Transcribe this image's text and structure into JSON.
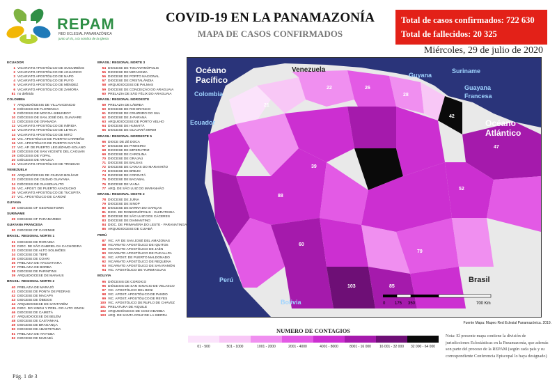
{
  "brand": {
    "name": "REPAM",
    "sub": "RED ECLESIAL PANAMAZÓNICA",
    "tagline": "junto al río, a la sombra de la iglesia",
    "logo_icon": "cross-in-green-leaves-logo"
  },
  "header": {
    "title": "COVID-19 EN LA PANAMAZONÍA",
    "subtitle": "MAPA DE CASOS CONFIRMADOS",
    "date": "Miércoles, 29 de julio de 2020"
  },
  "totals": {
    "confirmed_label": "Total de casos confirmados:",
    "confirmed_value": "722 630",
    "deaths_label": "Total de fallecidos:",
    "deaths_value": "20 325",
    "bg": "#e32118"
  },
  "map_labels": {
    "oceano_pacifico": "Océano\nPacífico",
    "colombia": "Colombia",
    "ecuador": "Ecuador",
    "venezuela": "Venezuela",
    "guyana": "Guyana",
    "suriname": "Suriname",
    "guayana_francesa": "Guayana\nFrancesa",
    "oceano_atlantico": "Océano\nAtlántico",
    "peru": "Perú",
    "bolivia": "Bolivia",
    "brasil": "Brasil"
  },
  "scale": {
    "ticks": [
      "0",
      "175",
      "350",
      "700 Km"
    ]
  },
  "source": "Fuente Mapa: Mapeo Red Eclesial Panamazónica. 2019.",
  "contagios": {
    "title": "NUMERO DE CONTAGIOS",
    "bins": [
      {
        "label": "01 - 500",
        "color": "#fbe3fb"
      },
      {
        "label": "501 - 1000",
        "color": "#f8c7f6"
      },
      {
        "label": "1001 - 2000",
        "color": "#f08ff0"
      },
      {
        "label": "2001 - 4000",
        "color": "#e35ae5"
      },
      {
        "label": "4001 - 8000",
        "color": "#cc2fd1"
      },
      {
        "label": "8001 - 16 000",
        "color": "#a51aac"
      },
      {
        "label": "16 001 - 32 000",
        "color": "#6e0f76"
      },
      {
        "label": "32 000 - 64 000",
        "color": "#0a0a0a"
      }
    ]
  },
  "note": "Nota: El presente mapa contiene la división de jurisdicciones Eclesiásticas en la Panamazonía, que además son parte del proceso de la REPAM (según cada país y su correspondiente Conferencia Episcopal lo haya designado)",
  "page": "Pág. 1 de 3",
  "legend_col1": [
    {
      "h": "ECUADOR"
    },
    {
      "n": "1",
      "t": "VICARIATO APOSTÓLICO DE SUCUMBÍOS"
    },
    {
      "n": "2",
      "t": "VICARIATO APOSTÓLICO DE AGUARICO"
    },
    {
      "n": "3",
      "t": "VICARIATO APOSTÓLICO DE NAPO"
    },
    {
      "n": "4",
      "t": "VICARIATO APOSTÓLICO DE PUYO"
    },
    {
      "n": "5",
      "t": "VICARIATO APOSTÓLICO DE MÉNDEZ"
    },
    {
      "n": "6",
      "t": "VICARIATO APOSTÓLICO DE ZAMORA"
    },
    {
      "n": "81",
      "t": "no definido"
    },
    {
      "h": "COLOMBIA"
    },
    {
      "n": "7",
      "t": "ARQUIDIÓCESIS DE VILLAVICENCIO"
    },
    {
      "n": "8",
      "t": "DIÓCESIS DE FLORENCIA"
    },
    {
      "n": "9",
      "t": "DIÓCESIS DE MOCOA-SIBUNDOY"
    },
    {
      "n": "10",
      "t": "DIÓCESIS DE SAN JOSÉ DEL GUAVIARE"
    },
    {
      "n": "11",
      "t": "DIÓCESIS DE GRANADA"
    },
    {
      "n": "12",
      "t": "VICARIATO APOSTÓLICO DE INÍRIDA"
    },
    {
      "n": "13",
      "t": "VICARIATO APOSTÓLICO DE LETICIA"
    },
    {
      "n": "14",
      "t": "VICARIATO APOSTÓLICO DE MITÚ"
    },
    {
      "n": "15",
      "t": "VIC. APOSTÓLICO DE PUERTO CARREÑO"
    },
    {
      "n": "16",
      "t": "VIC. APOSTÓLICO DE PUERTO GAITÁN"
    },
    {
      "n": "17",
      "t": "VIC. AP. DE PUERTO LEGUÍZAMO-SOLANO"
    },
    {
      "n": "18",
      "t": "DIÓCESIS DE SAN VICENTE DEL CAGUÁN"
    },
    {
      "n": "19",
      "t": "DIÓCESIS DE YOPAL"
    },
    {
      "n": "20",
      "t": "DIÓCESIS DE ARAUCA"
    },
    {
      "n": "21",
      "t": "VICARIATO APOSTÓLICO DE TRINIDAD"
    },
    {
      "h": "VENEZUELA"
    },
    {
      "n": "22",
      "t": "ARQUIDIÓCESIS DE CIUDAD BOLÍVAR"
    },
    {
      "n": "23",
      "t": "DIÓCESIS DE CIUDAD GUAYANA"
    },
    {
      "n": "24",
      "t": "DIÓCESIS DE GUASDUALITO"
    },
    {
      "n": "25",
      "t": "VIC. APOST. DE PUERTO AYACUCHO"
    },
    {
      "n": "26",
      "t": "VICARIATO APOSTÓLICO DE TUCUPITA"
    },
    {
      "n": "27",
      "t": "VIC. APOSTÓLICO DE CARONÍ"
    },
    {
      "h": "GUYANA"
    },
    {
      "n": "28",
      "t": "DIOCESE OF GEORGETOWN"
    },
    {
      "h": "SURINAME"
    },
    {
      "n": "29",
      "t": "DIOCESE OF PARAMARIBO"
    },
    {
      "h": "GUAYANA FRANCESA"
    },
    {
      "n": "30",
      "t": "DIOCESE OF CAYENNE"
    },
    {
      "h": "BRASIL: REGIONAL NORTE 1"
    },
    {
      "n": "31",
      "t": "DIOCESE DE RORAIMA"
    },
    {
      "n": "32",
      "t": "DIOC. DE SÃO GABRIEL DA CACHOEIRA"
    },
    {
      "n": "33",
      "t": "DIOCESE DE ALTO SOLIMÕES"
    },
    {
      "n": "34",
      "t": "DIOCESE DE TEFÉ"
    },
    {
      "n": "35",
      "t": "DIOCESE DE COARI"
    },
    {
      "n": "36",
      "t": "PRELAZIA DE ITACOATIARA"
    },
    {
      "n": "37",
      "t": "PRELAZIA DE BORBA"
    },
    {
      "n": "38",
      "t": "DIOCESE DE PARINTINS"
    },
    {
      "n": "39",
      "t": "ARQUIDIOCESE DE MANAUS"
    },
    {
      "h": "BRASIL: REGIONAL NORTE 2"
    },
    {
      "n": "40",
      "t": "PRELAZIA DE MARAJÓ"
    },
    {
      "n": "41",
      "t": "DIOCESE DE PONTA DE PEDRAS"
    },
    {
      "n": "42",
      "t": "DIOCESE DE MACAPÁ"
    },
    {
      "n": "43",
      "t": "DIOCESE DE ÓBIDOS"
    },
    {
      "n": "44",
      "t": "ARQUIDIOCESE DE SANTARÉM"
    },
    {
      "n": "45",
      "t": "DIOC. DO XINGU Y PREL. DO ALTO XINGU"
    },
    {
      "n": "46",
      "t": "DIOCESE DE CAMETÁ"
    },
    {
      "n": "47",
      "t": "ARQUIDIOCESE DE BELÉM"
    },
    {
      "n": "48",
      "t": "DIOCESE DE CASTANHAL"
    },
    {
      "n": "49",
      "t": "DIOCESE DE BRAGANÇA"
    },
    {
      "n": "50",
      "t": "DIOCESE DE ABAETETUBA"
    },
    {
      "n": "51",
      "t": "PRELAZIA DE ITAITUBA"
    },
    {
      "n": "52",
      "t": "DIOCESE DE MARABÁ"
    }
  ],
  "legend_col2": [
    {
      "h": "BRASIL: REGIONAL NORTE 3"
    },
    {
      "n": "54",
      "t": "DIOCESE DE TOCANTINÓPOLIS"
    },
    {
      "n": "55",
      "t": "DIOCESE DE MIRACEMA"
    },
    {
      "n": "56",
      "t": "DIOCESE DE PORTO NACIONAL"
    },
    {
      "n": "57",
      "t": "DIOCESE DE CRISTALÂNDIA"
    },
    {
      "n": "58",
      "t": "ARQUIDIOCESE DE PALMAS"
    },
    {
      "n": "59",
      "t": "DIOCESE DE CONCEIÇÃO DO ARAGUAIA"
    },
    {
      "n": "60",
      "t": "PRELAZIA DE SÃO FÉLIX DO ARAGUAIA"
    },
    {
      "h": "BRASIL: REGIONAL NOROESTE"
    },
    {
      "n": "59",
      "t": "PRELAZIA DE LÁBREA"
    },
    {
      "n": "60",
      "t": "DIOCESE DE RIO BRANCO"
    },
    {
      "n": "61",
      "t": "DIOCESE DE CRUZEIRO DO SUL"
    },
    {
      "n": "62",
      "t": "DIOCESE DE JI-PARANÁ"
    },
    {
      "n": "63",
      "t": "ARQUIDIOCESE DE PORTO VELHO"
    },
    {
      "n": "64",
      "t": "DIOCESE DE HUMAITÁ"
    },
    {
      "n": "65",
      "t": "DIOCESE DE GUAJARÁ-MIRIM"
    },
    {
      "h": "BRASIL: REGIONAL NORDESTE 5"
    },
    {
      "n": "66",
      "t": "DIOCE DE ZÉ DOCA"
    },
    {
      "n": "67",
      "t": "DIOCESE DE PINHEIRO"
    },
    {
      "n": "68",
      "t": "DIOCESE DE IMPERATRIZ"
    },
    {
      "n": "69",
      "t": "DIOCESE DE CAROLINA"
    },
    {
      "n": "70",
      "t": "DIOCESE DE GRAJAÚ"
    },
    {
      "n": "71",
      "t": "DIOCESE DE BALSAS"
    },
    {
      "n": "72",
      "t": "DIOCESE DE CAXIAS DO MARANHÃO"
    },
    {
      "n": "73",
      "t": "DIOCESE DE BREJO"
    },
    {
      "n": "74",
      "t": "DIOCESE DE COROATÁ"
    },
    {
      "n": "75",
      "t": "DIOCESE DE BACABAL"
    },
    {
      "n": "76",
      "t": "DIOCESE DE VIANA"
    },
    {
      "n": "77",
      "t": "ARQ. DE SÃO LUIZ DO MARANHÃO"
    },
    {
      "h": "BRASIL: REGIONAL OESTE 2"
    },
    {
      "n": "78",
      "t": "DIOCESE DE JUÍNA"
    },
    {
      "n": "79",
      "t": "DIOCESE DE SINOP"
    },
    {
      "n": "80",
      "t": "DIOCESE DE BARRA DO GARÇAS"
    },
    {
      "n": "81",
      "t": "DIOC. DE RONDONÓPOLIS - GUIRATINGA"
    },
    {
      "n": "82",
      "t": "DIOCESE DE SÃO LUIZ DOS CÁCERES"
    },
    {
      "n": "83",
      "t": "DIOCESE DE DIAMANTINO"
    },
    {
      "n": "84",
      "t": "DIOC. DE PRIMAVERA DO LESTE - PARANATINGA"
    },
    {
      "n": "85",
      "t": "ARQUIDIOCESE DE CUIABÁ"
    },
    {
      "h": "PERÚ"
    },
    {
      "n": "87",
      "t": "VIC. AP. DE SAN JOSÉ DEL AMAZONAS"
    },
    {
      "n": "88",
      "t": "VICARIATO APOSTÓLICO DE IQUITOS"
    },
    {
      "n": "89",
      "t": "VICARIATO APOSTÓLICO DE JAÉN"
    },
    {
      "n": "90",
      "t": "VICARIATO APOSTÓLICO DE PUCALLPA"
    },
    {
      "n": "91",
      "t": "VIC. APOST. DE PUERTO MALDONADO"
    },
    {
      "n": "92",
      "t": "VICARIATO APOSTÓLICO DE REQUENA"
    },
    {
      "n": "93",
      "t": "VICARIATO APOSTÓLICO DE SAN RAMÓN"
    },
    {
      "n": "94",
      "t": "VIC. APOSTÓLICO DE YURIMAGUAS"
    },
    {
      "h": "BOLIVIA"
    },
    {
      "n": "95",
      "t": "DIÓCESIS DE COROICO"
    },
    {
      "n": "96",
      "t": "DIÓCESIS DE SAN IGNACIO DE VELASCO"
    },
    {
      "n": "97",
      "t": "VIC. APOSTÓLICO DEL BENI"
    },
    {
      "n": "98",
      "t": "VIC. APOST. APOSTÓLICO DE PANDO"
    },
    {
      "n": "99",
      "t": "VIC. APOST. APOSTÓLICO DE REYES"
    },
    {
      "n": "100",
      "t": "VIC. APOSTÓLICO DE ÑUFLO DE CHÁVEZ"
    },
    {
      "n": "101",
      "t": "PRELATURA DE AIQUILE"
    },
    {
      "n": "102",
      "t": "ARQUIDIÓCESIS DE COCHABAMBA"
    },
    {
      "n": "103",
      "t": "ARQ. DE SANTA CRUZ DE LA SIERRA"
    }
  ]
}
